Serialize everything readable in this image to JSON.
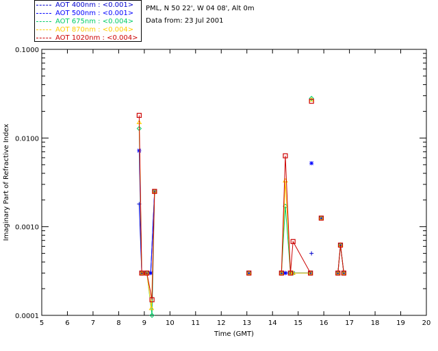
{
  "header": {
    "site": "PML, N 50 22', W 04 08', Alt 0m",
    "date": "Data from: 23 Jul 2001"
  },
  "legend": [
    {
      "label": "AOT  400nm : <0.001>",
      "color": "#0000cc"
    },
    {
      "label": "AOT  500nm : <0.001>",
      "color": "#0000ff"
    },
    {
      "label": "AOT  675nm : <0.004>",
      "color": "#00cc66"
    },
    {
      "label": "AOT  870nm : <0.004>",
      "color": "#ffcc00"
    },
    {
      "label": "AOT 1020nm : <0.004>",
      "color": "#cc0000"
    }
  ],
  "chart_data": {
    "type": "line",
    "xlabel": "Time (GMT)",
    "ylabel": "Imaginary Part of Refractive Index",
    "xlim": [
      5,
      20
    ],
    "ylim": [
      0.0001,
      0.1
    ],
    "yscale": "log",
    "xticks": [
      "5",
      "6",
      "7",
      "8",
      "9",
      "10",
      "11",
      "12",
      "13",
      "14",
      "15",
      "16",
      "17",
      "18",
      "19",
      "20"
    ],
    "yticks": [
      "0.0001",
      "0.0010",
      "0.0100",
      "0.1000"
    ],
    "series": [
      {
        "name": "AOT  400nm : <0.001>",
        "color": "#0000cc",
        "marker": "plus",
        "points": [
          [
            8.8,
            0.0018
          ],
          [
            8.9,
            0.0003
          ],
          [
            9.1,
            0.0003
          ],
          [
            9.25,
            0.0003
          ],
          [
            9.4,
            0.0025
          ],
          [
            13.08,
            0.0003
          ],
          [
            14.35,
            0.0003
          ],
          [
            14.5,
            0.0003
          ],
          [
            14.7,
            0.0003
          ],
          [
            14.8,
            0.0003
          ],
          [
            15.48,
            0.0003
          ],
          [
            15.52,
            0.0005
          ],
          [
            15.9,
            0.00125
          ],
          [
            16.55,
            0.0003
          ],
          [
            16.65,
            0.00062
          ],
          [
            16.78,
            0.0003
          ]
        ]
      },
      {
        "name": "AOT  500nm : <0.001>",
        "color": "#0000ff",
        "marker": "star",
        "points": [
          [
            8.8,
            0.0072
          ],
          [
            8.9,
            0.0003
          ],
          [
            9.1,
            0.0003
          ],
          [
            9.25,
            0.0003
          ],
          [
            9.4,
            0.0025
          ],
          [
            13.08,
            0.0003
          ],
          [
            14.35,
            0.0003
          ],
          [
            14.5,
            0.0003
          ],
          [
            14.7,
            0.0003
          ],
          [
            14.8,
            0.0003
          ],
          [
            15.48,
            0.0003
          ],
          [
            15.52,
            0.0052
          ],
          [
            15.9,
            0.00125
          ],
          [
            16.55,
            0.0003
          ],
          [
            16.65,
            0.00062
          ],
          [
            16.78,
            0.0003
          ]
        ]
      },
      {
        "name": "AOT  675nm : <0.004>",
        "color": "#00cc66",
        "marker": "diamond",
        "points": [
          [
            8.8,
            0.0128
          ],
          [
            8.9,
            0.0003
          ],
          [
            9.1,
            0.0003
          ],
          [
            9.3,
            0.0001
          ],
          [
            9.4,
            0.0025
          ],
          [
            13.08,
            0.0003
          ],
          [
            14.35,
            0.0003
          ],
          [
            14.5,
            0.0017
          ],
          [
            14.7,
            0.0003
          ],
          [
            14.8,
            0.0003
          ],
          [
            15.48,
            0.0003
          ],
          [
            15.52,
            0.028
          ],
          [
            15.9,
            0.00125
          ],
          [
            16.55,
            0.0003
          ],
          [
            16.65,
            0.00062
          ],
          [
            16.78,
            0.0003
          ]
        ]
      },
      {
        "name": "AOT  870nm : <0.004>",
        "color": "#ffcc00",
        "marker": "triangle",
        "points": [
          [
            8.8,
            0.015
          ],
          [
            8.9,
            0.0003
          ],
          [
            9.1,
            0.0003
          ],
          [
            9.28,
            0.00012
          ],
          [
            9.4,
            0.0025
          ],
          [
            13.08,
            0.0003
          ],
          [
            14.35,
            0.0003
          ],
          [
            14.5,
            0.0033
          ],
          [
            14.7,
            0.0003
          ],
          [
            14.8,
            0.0003
          ],
          [
            15.48,
            0.0003
          ],
          [
            15.52,
            0.027
          ],
          [
            15.9,
            0.00125
          ],
          [
            16.55,
            0.0003
          ],
          [
            16.65,
            0.00062
          ],
          [
            16.78,
            0.0003
          ]
        ]
      },
      {
        "name": "AOT 1020nm : <0.004>",
        "color": "#cc0000",
        "marker": "square",
        "points": [
          [
            8.8,
            0.018
          ],
          [
            8.9,
            0.0003
          ],
          [
            9.1,
            0.0003
          ],
          [
            9.3,
            0.00015
          ],
          [
            9.4,
            0.0025
          ],
          [
            13.08,
            0.0003
          ],
          [
            14.35,
            0.0003
          ],
          [
            14.5,
            0.0063
          ],
          [
            14.7,
            0.0003
          ],
          [
            14.8,
            0.00068
          ],
          [
            15.48,
            0.0003
          ],
          [
            15.52,
            0.026
          ],
          [
            15.9,
            0.00125
          ],
          [
            16.55,
            0.0003
          ],
          [
            16.65,
            0.00062
          ],
          [
            16.78,
            0.0003
          ]
        ]
      }
    ]
  }
}
